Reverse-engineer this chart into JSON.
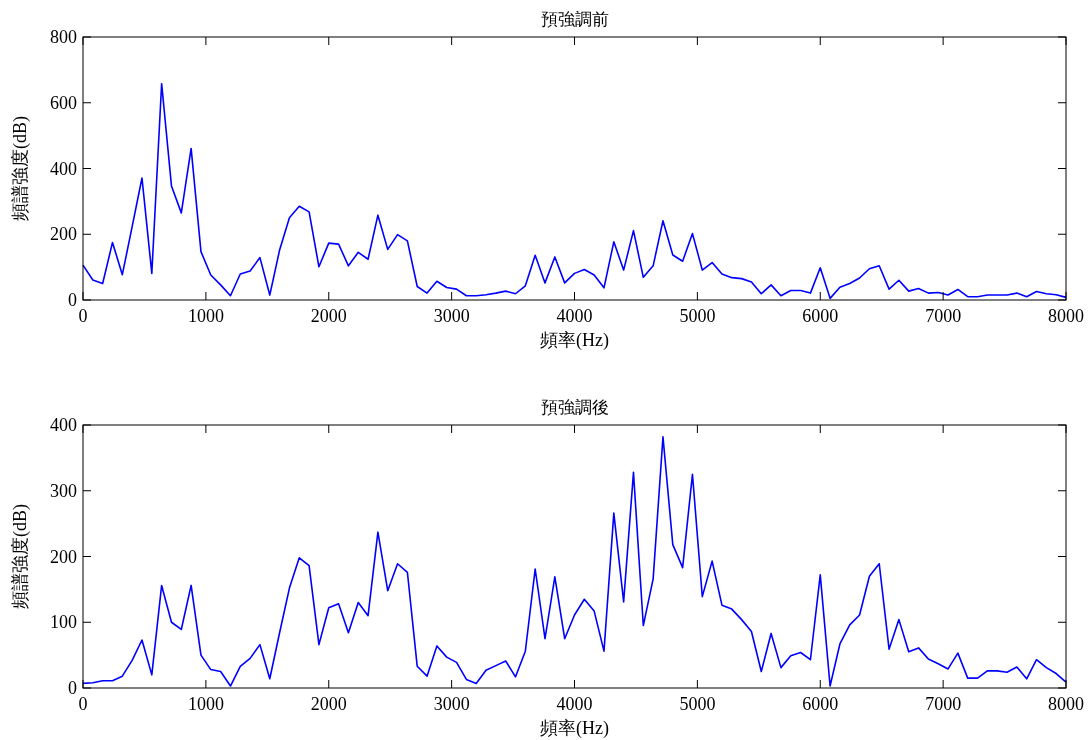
{
  "chart_data": [
    {
      "type": "line",
      "title": "預強調前",
      "xlabel": "頻率(Hz)",
      "ylabel": "頻譜強度(dB)",
      "xlim": [
        0,
        8000
      ],
      "ylim": [
        0,
        800
      ],
      "xticks": [
        0,
        1000,
        2000,
        3000,
        4000,
        5000,
        6000,
        7000,
        8000
      ],
      "yticks": [
        0,
        200,
        400,
        600,
        800
      ],
      "x": [
        0,
        80,
        160,
        240,
        320,
        400,
        480,
        560,
        640,
        720,
        800,
        880,
        960,
        1040,
        1120,
        1200,
        1280,
        1360,
        1440,
        1520,
        1600,
        1680,
        1760,
        1840,
        1920,
        2000,
        2080,
        2160,
        2240,
        2320,
        2400,
        2480,
        2560,
        2640,
        2720,
        2800,
        2880,
        2960,
        3040,
        3120,
        3200,
        3280,
        3360,
        3440,
        3520,
        3600,
        3680,
        3760,
        3840,
        3920,
        4000,
        4080,
        4160,
        4240,
        4320,
        4400,
        4480,
        4560,
        4640,
        4720,
        4800,
        4880,
        4960,
        5040,
        5120,
        5200,
        5280,
        5360,
        5440,
        5520,
        5600,
        5680,
        5760,
        5840,
        5920,
        6000,
        6080,
        6160,
        6240,
        6320,
        6400,
        6480,
        6560,
        6640,
        6720,
        6800,
        6880,
        6960,
        7040,
        7120,
        7200,
        7280,
        7360,
        7440,
        7520,
        7600,
        7680,
        7760,
        7840,
        7920,
        8000
      ],
      "series": [
        {
          "color": "#0000ff",
          "values": [
            106,
            61,
            50,
            175,
            77,
            223,
            371,
            81,
            658,
            347,
            265,
            461,
            147,
            76,
            46,
            13,
            79,
            88,
            129,
            15,
            152,
            250,
            285,
            268,
            101,
            173,
            170,
            104,
            145,
            124,
            258,
            154,
            199,
            180,
            41,
            21,
            57,
            38,
            33,
            13,
            13,
            16,
            21,
            27,
            19,
            43,
            136,
            52,
            131,
            52,
            81,
            93,
            76,
            37,
            177,
            91,
            211,
            69,
            104,
            241,
            137,
            118,
            202,
            91,
            114,
            79,
            68,
            65,
            55,
            19,
            46,
            13,
            29,
            29,
            21,
            98,
            5,
            39,
            50,
            67,
            95,
            104,
            33,
            60,
            27,
            35,
            21,
            23,
            15,
            32,
            10,
            10,
            15,
            15,
            15,
            21,
            10,
            26,
            19,
            16,
            8
          ]
        }
      ]
    },
    {
      "type": "line",
      "title": "預強調後",
      "xlabel": "頻率(Hz)",
      "ylabel": "頻譜強度(dB)",
      "xlim": [
        0,
        8000
      ],
      "ylim": [
        0,
        400
      ],
      "xticks": [
        0,
        1000,
        2000,
        3000,
        4000,
        5000,
        6000,
        7000,
        8000
      ],
      "yticks": [
        0,
        100,
        200,
        300,
        400
      ],
      "x": [
        0,
        80,
        160,
        240,
        320,
        400,
        480,
        560,
        640,
        720,
        800,
        880,
        960,
        1040,
        1120,
        1200,
        1280,
        1360,
        1440,
        1520,
        1600,
        1680,
        1760,
        1840,
        1920,
        2000,
        2080,
        2160,
        2240,
        2320,
        2400,
        2480,
        2560,
        2640,
        2720,
        2800,
        2880,
        2960,
        3040,
        3120,
        3200,
        3280,
        3360,
        3440,
        3520,
        3600,
        3680,
        3760,
        3840,
        3920,
        4000,
        4080,
        4160,
        4240,
        4320,
        4400,
        4480,
        4560,
        4640,
        4720,
        4800,
        4880,
        4960,
        5040,
        5120,
        5200,
        5280,
        5360,
        5440,
        5520,
        5600,
        5680,
        5760,
        5840,
        5920,
        6000,
        6080,
        6160,
        6240,
        6320,
        6400,
        6480,
        6560,
        6640,
        6720,
        6800,
        6880,
        6960,
        7040,
        7120,
        7200,
        7280,
        7360,
        7440,
        7520,
        7600,
        7680,
        7760,
        7840,
        7920,
        8000
      ],
      "series": [
        {
          "color": "#0000ff",
          "values": [
            7,
            8,
            11,
            11,
            18,
            42,
            73,
            20,
            156,
            100,
            89,
            156,
            50,
            28,
            25,
            3,
            33,
            45,
            66,
            14,
            84,
            152,
            198,
            186,
            66,
            122,
            128,
            84,
            130,
            110,
            237,
            148,
            189,
            176,
            33,
            18,
            64,
            47,
            39,
            13,
            7,
            27,
            34,
            41,
            17,
            56,
            181,
            75,
            169,
            75,
            111,
            135,
            117,
            56,
            266,
            131,
            328,
            95,
            166,
            382,
            218,
            183,
            325,
            139,
            193,
            126,
            120,
            104,
            86,
            25,
            83,
            31,
            49,
            54,
            43,
            172,
            3,
            67,
            96,
            111,
            170,
            189,
            59,
            104,
            55,
            61,
            44,
            37,
            29,
            53,
            15,
            15,
            26,
            26,
            24,
            32,
            14,
            43,
            31,
            22,
            9
          ]
        }
      ]
    }
  ]
}
